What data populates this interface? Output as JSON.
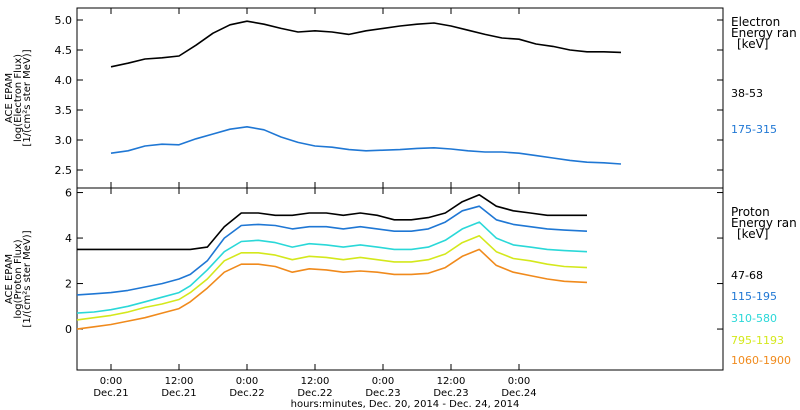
{
  "chart_data": [
    {
      "type": "line",
      "ylabel_lines": [
        "ACE EPAM",
        "log(Electron Flux)",
        "[1/(cm²s ster MeV)]"
      ],
      "ylim": [
        2.2,
        5.2
      ],
      "yticks": [
        "2.5",
        "3.0",
        "3.5",
        "4.0",
        "4.5",
        "5.0"
      ],
      "xlim_hours": [
        -6.0,
        108.0
      ],
      "legend_title": [
        "Electron",
        "Energy ran",
        "[keV]"
      ],
      "series": [
        {
          "name": "38-53",
          "color": "#000000",
          "x": [
            0,
            3,
            6,
            9,
            12,
            15,
            18,
            21,
            24,
            27,
            30,
            33,
            36,
            39,
            42,
            45,
            48,
            51,
            54,
            57,
            60,
            63,
            66,
            69,
            72,
            75,
            78,
            81,
            84,
            87,
            90
          ],
          "y": [
            4.22,
            4.28,
            4.35,
            4.37,
            4.4,
            4.58,
            4.78,
            4.92,
            4.98,
            4.93,
            4.86,
            4.8,
            4.82,
            4.8,
            4.76,
            4.82,
            4.86,
            4.9,
            4.93,
            4.95,
            4.9,
            4.83,
            4.76,
            4.7,
            4.68,
            4.6,
            4.56,
            4.5,
            4.47,
            4.47,
            4.46
          ]
        },
        {
          "name": "175-315",
          "color": "#1f77d4",
          "x": [
            0,
            3,
            6,
            9,
            12,
            15,
            18,
            21,
            24,
            27,
            30,
            33,
            36,
            39,
            42,
            45,
            48,
            51,
            54,
            57,
            60,
            63,
            66,
            69,
            72,
            75,
            78,
            81,
            84,
            87,
            90
          ],
          "y": [
            2.78,
            2.82,
            2.9,
            2.93,
            2.92,
            3.02,
            3.1,
            3.18,
            3.22,
            3.17,
            3.05,
            2.96,
            2.9,
            2.88,
            2.84,
            2.82,
            2.83,
            2.84,
            2.86,
            2.87,
            2.85,
            2.82,
            2.8,
            2.8,
            2.78,
            2.74,
            2.7,
            2.66,
            2.63,
            2.62,
            2.6
          ]
        }
      ]
    },
    {
      "type": "line",
      "ylabel_lines": [
        "ACE EPAM",
        "log(Proton Flux)",
        "[1/(cm²s ster MeV)]"
      ],
      "ylim": [
        -1.8,
        6.2
      ],
      "yticks": [
        "0",
        "2",
        "4",
        "6"
      ],
      "xlim_hours": [
        -6.0,
        108.0
      ],
      "xticks": [
        {
          "hour": 0,
          "time": "0:00",
          "date": "Dec.21"
        },
        {
          "hour": 12,
          "time": "12:00",
          "date": "Dec.21"
        },
        {
          "hour": 24,
          "time": "0:00",
          "date": "Dec.22"
        },
        {
          "hour": 36,
          "time": "12:00",
          "date": "Dec.22"
        },
        {
          "hour": 48,
          "time": "0:00",
          "date": "Dec.23"
        },
        {
          "hour": 60,
          "time": "12:00",
          "date": "Dec.23"
        },
        {
          "hour": 72,
          "time": "0:00",
          "date": "Dec.24"
        }
      ],
      "xlabel": "hours:minutes, Dec. 20, 2014 - Dec. 24, 2014",
      "legend_title": [
        "Proton",
        "Energy ran",
        "[keV]"
      ],
      "series": [
        {
          "name": "47-68",
          "color": "#000000",
          "x": [
            -6,
            -3,
            0,
            3,
            6,
            9,
            12,
            14,
            17,
            20,
            23,
            26,
            29,
            32,
            35,
            38,
            41,
            44,
            47,
            50,
            53,
            56,
            59,
            62,
            65,
            68,
            71,
            74,
            77,
            80,
            84
          ],
          "y": [
            3.5,
            3.5,
            3.5,
            3.5,
            3.5,
            3.5,
            3.5,
            3.5,
            3.6,
            4.5,
            5.1,
            5.1,
            5.0,
            5.0,
            5.1,
            5.1,
            5.0,
            5.1,
            5.0,
            4.8,
            4.8,
            4.9,
            5.1,
            5.6,
            5.9,
            5.4,
            5.2,
            5.1,
            5.0,
            5.0,
            5.0
          ]
        },
        {
          "name": "115-195",
          "color": "#1f77d4",
          "x": [
            -6,
            -3,
            0,
            3,
            6,
            9,
            12,
            14,
            17,
            20,
            23,
            26,
            29,
            32,
            35,
            38,
            41,
            44,
            47,
            50,
            53,
            56,
            59,
            62,
            65,
            68,
            71,
            74,
            77,
            80,
            84
          ],
          "y": [
            1.5,
            1.55,
            1.6,
            1.7,
            1.85,
            2.0,
            2.2,
            2.4,
            3.0,
            4.0,
            4.55,
            4.6,
            4.55,
            4.4,
            4.5,
            4.5,
            4.4,
            4.5,
            4.4,
            4.3,
            4.3,
            4.4,
            4.7,
            5.2,
            5.4,
            4.8,
            4.6,
            4.5,
            4.4,
            4.35,
            4.3
          ]
        },
        {
          "name": "310-580",
          "color": "#2ad8d8",
          "x": [
            -6,
            -3,
            0,
            3,
            6,
            9,
            12,
            14,
            17,
            20,
            23,
            26,
            29,
            32,
            35,
            38,
            41,
            44,
            47,
            50,
            53,
            56,
            59,
            62,
            65,
            68,
            71,
            74,
            77,
            80,
            84
          ],
          "y": [
            0.7,
            0.75,
            0.85,
            1.0,
            1.2,
            1.4,
            1.6,
            1.9,
            2.6,
            3.4,
            3.85,
            3.9,
            3.8,
            3.6,
            3.75,
            3.7,
            3.6,
            3.7,
            3.6,
            3.5,
            3.5,
            3.6,
            3.9,
            4.4,
            4.7,
            4.0,
            3.7,
            3.6,
            3.5,
            3.45,
            3.4
          ]
        },
        {
          "name": "795-1193",
          "color": "#d4e81c",
          "x": [
            -6,
            -3,
            0,
            3,
            6,
            9,
            12,
            14,
            17,
            20,
            23,
            26,
            29,
            32,
            35,
            38,
            41,
            44,
            47,
            50,
            53,
            56,
            59,
            62,
            65,
            68,
            71,
            74,
            77,
            80,
            84
          ],
          "y": [
            0.4,
            0.5,
            0.6,
            0.75,
            0.95,
            1.1,
            1.3,
            1.6,
            2.2,
            3.0,
            3.35,
            3.35,
            3.25,
            3.05,
            3.2,
            3.15,
            3.05,
            3.15,
            3.05,
            2.95,
            2.95,
            3.05,
            3.3,
            3.8,
            4.1,
            3.4,
            3.1,
            3.0,
            2.85,
            2.75,
            2.7
          ]
        },
        {
          "name": "1060-1900",
          "color": "#f08a1c",
          "x": [
            -6,
            -3,
            0,
            3,
            6,
            9,
            12,
            14,
            17,
            20,
            23,
            26,
            29,
            32,
            35,
            38,
            41,
            44,
            47,
            50,
            53,
            56,
            59,
            62,
            65,
            68,
            71,
            74,
            77,
            80,
            84
          ],
          "y": [
            0.0,
            0.1,
            0.2,
            0.35,
            0.5,
            0.7,
            0.9,
            1.2,
            1.8,
            2.5,
            2.85,
            2.85,
            2.75,
            2.5,
            2.65,
            2.6,
            2.5,
            2.55,
            2.5,
            2.4,
            2.4,
            2.45,
            2.7,
            3.2,
            3.5,
            2.8,
            2.5,
            2.35,
            2.2,
            2.1,
            2.05
          ]
        }
      ]
    }
  ]
}
